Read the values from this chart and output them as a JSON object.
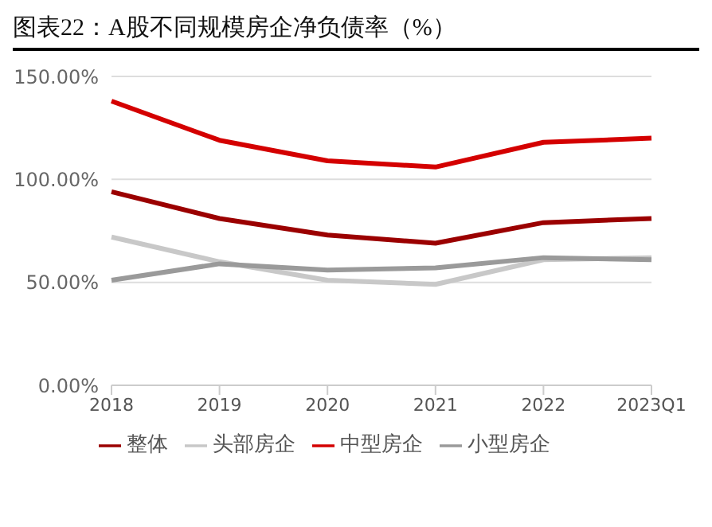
{
  "chart_data": {
    "type": "line",
    "title": "图表22：A股不同规模房企净负债率（%）",
    "categories": [
      "2018",
      "2019",
      "2020",
      "2021",
      "2022",
      "2023Q1"
    ],
    "series": [
      {
        "name": "整体",
        "color": "#9b0000",
        "values": [
          94,
          81,
          73,
          69,
          79,
          81
        ]
      },
      {
        "name": "头部房企",
        "color": "#c8c8c8",
        "values": [
          72,
          60,
          51,
          49,
          61,
          62
        ]
      },
      {
        "name": "中型房企",
        "color": "#d40000",
        "values": [
          138,
          119,
          109,
          106,
          118,
          120
        ]
      },
      {
        "name": "小型房企",
        "color": "#9a9a9a",
        "values": [
          51,
          59,
          56,
          57,
          62,
          61
        ]
      }
    ],
    "ylim": [
      0,
      150
    ],
    "yticks": [
      {
        "value": 0,
        "label": "0.00%"
      },
      {
        "value": 50,
        "label": "50.00%"
      },
      {
        "value": 100,
        "label": "100.00%"
      },
      {
        "value": 150,
        "label": "150.00%"
      }
    ],
    "grid": "y",
    "legend": "bottom",
    "marker": "none",
    "line_style": "solid"
  }
}
